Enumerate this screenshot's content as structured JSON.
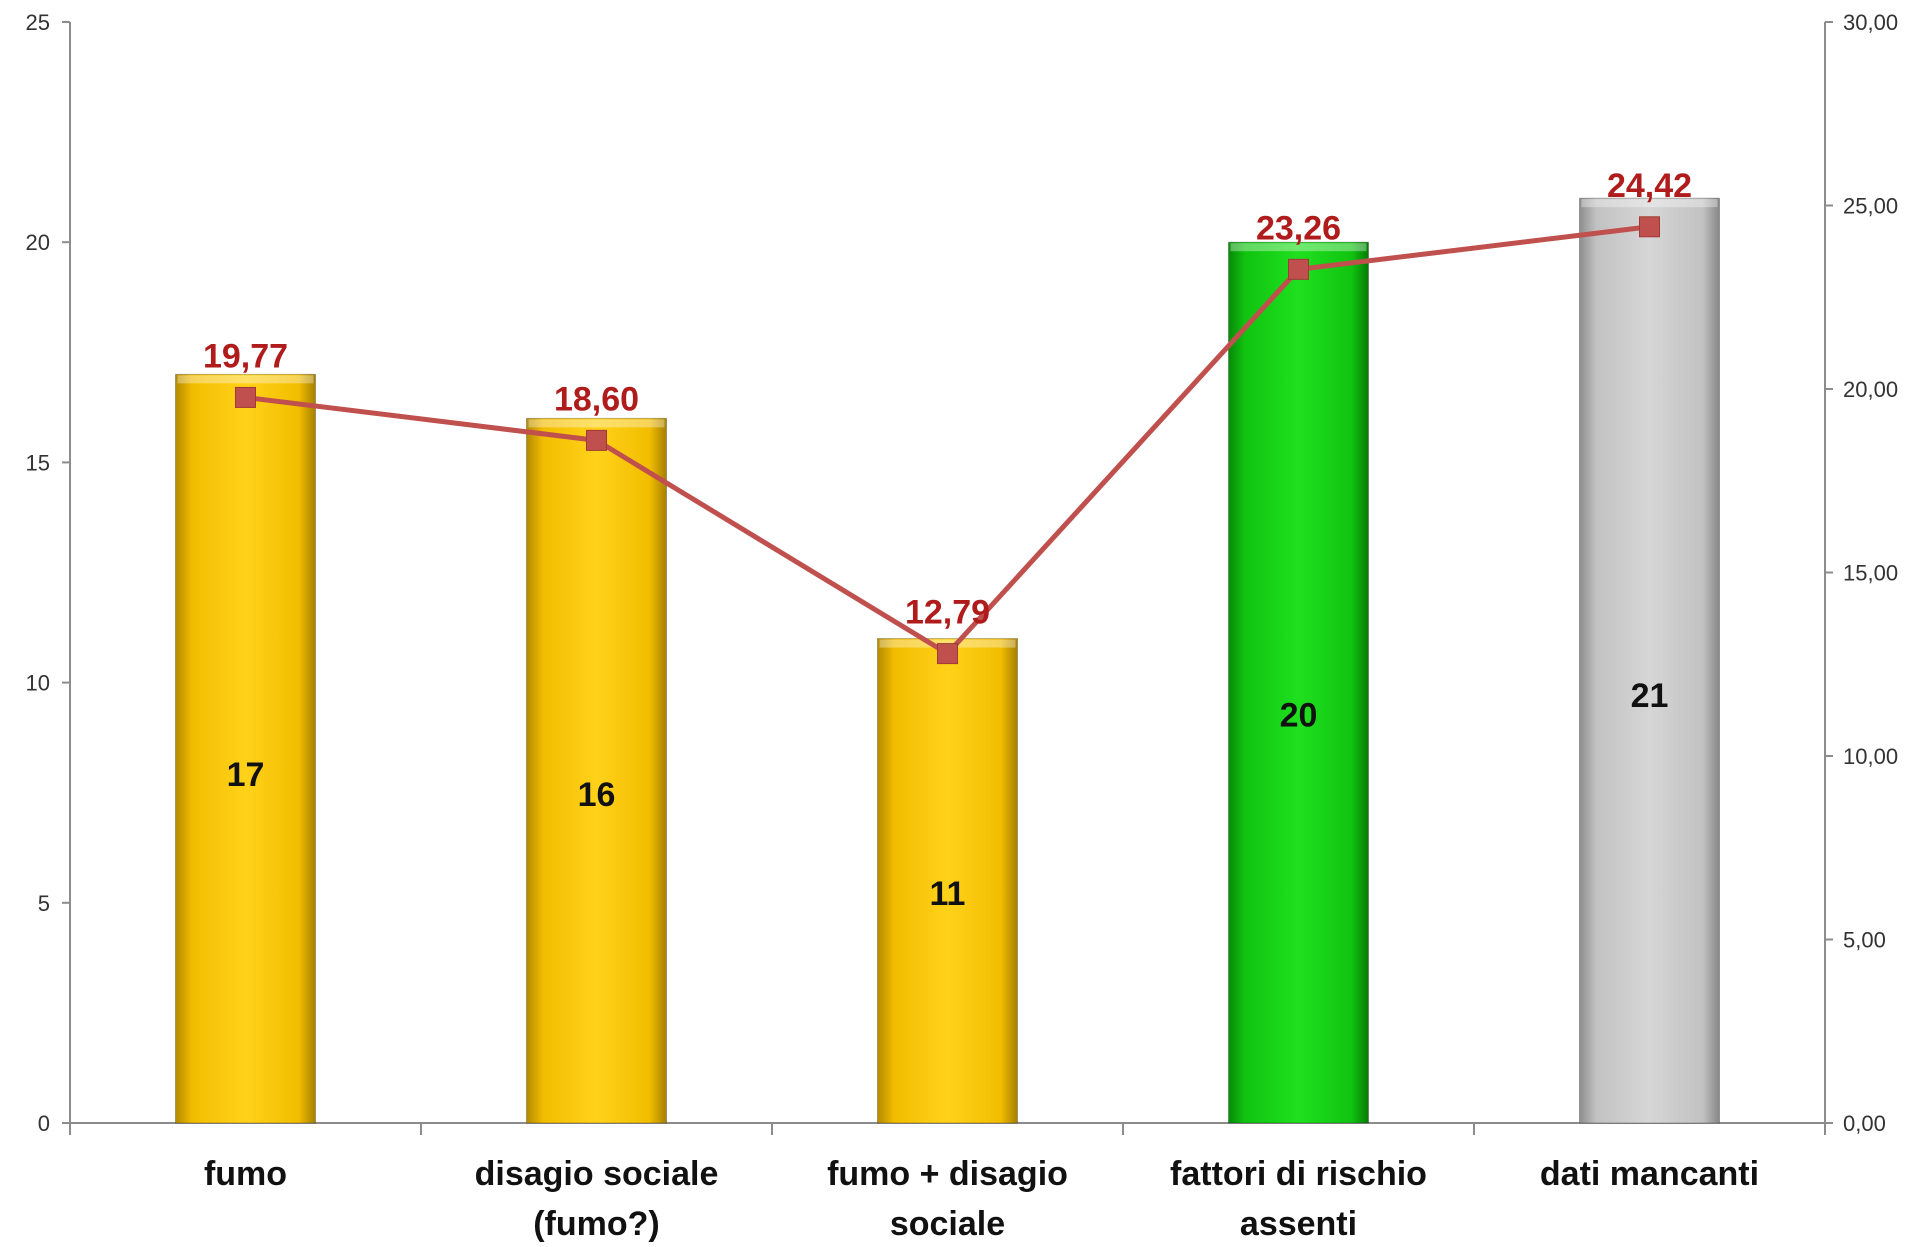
{
  "chart_data": {
    "type": "bar",
    "categories": [
      [
        "fumo"
      ],
      [
        "disagio sociale",
        "(fumo?)"
      ],
      [
        "fumo + disagio",
        "sociale"
      ],
      [
        "fattori di rischio",
        "assenti"
      ],
      [
        "dati mancanti"
      ]
    ],
    "series": [
      {
        "type": "bar",
        "axis": "left",
        "values": [
          17,
          16,
          11,
          20,
          21
        ],
        "value_labels": [
          "17",
          "16",
          "11",
          "20",
          "21"
        ],
        "colors": [
          "#f7c400",
          "#f7c400",
          "#f7c400",
          "#11c911",
          "#c4c4c4"
        ]
      },
      {
        "type": "line",
        "axis": "right",
        "values": [
          19.77,
          18.6,
          12.79,
          23.26,
          24.42
        ],
        "value_labels": [
          "19,77",
          "18,60",
          "12,79",
          "23,26",
          "24,42"
        ],
        "color": "#c0504d"
      }
    ],
    "y_left": {
      "min": 0,
      "max": 25,
      "ticks": [
        "0",
        "5",
        "10",
        "15",
        "20",
        "25"
      ]
    },
    "y_right": {
      "min": 0,
      "max": 30,
      "ticks": [
        "0,00",
        "5,00",
        "10,00",
        "15,00",
        "20,00",
        "25,00",
        "30,00"
      ]
    },
    "grid": false,
    "legend": "none"
  }
}
